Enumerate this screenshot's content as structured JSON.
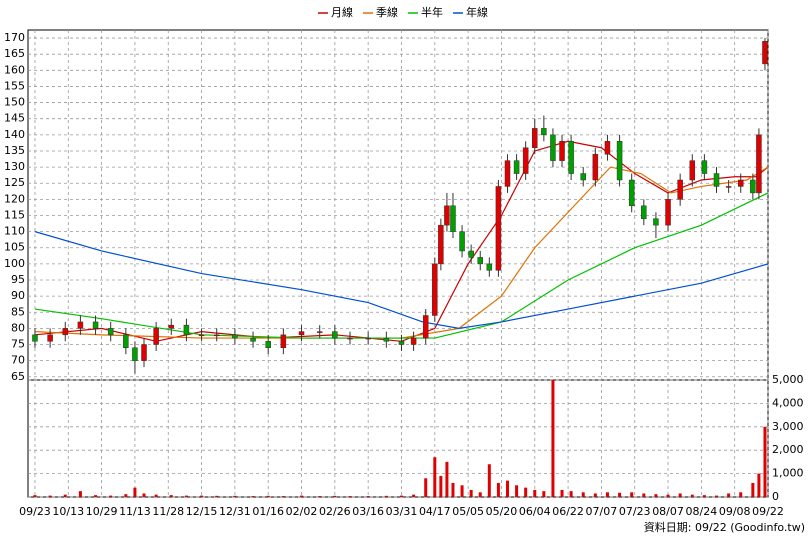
{
  "chart_data": {
    "type": "candlestick",
    "legend": "top",
    "grid": true,
    "up_color": "#e00000",
    "down_color": "#00a000",
    "xlim": [
      -2.3,
      242
    ],
    "xticks": [
      {
        "value": 0,
        "label": "09/23"
      },
      {
        "value": 11,
        "label": "10/13"
      },
      {
        "value": 22,
        "label": "10/29"
      },
      {
        "value": 33,
        "label": "11/13"
      },
      {
        "value": 44,
        "label": "11/28"
      },
      {
        "value": 55,
        "label": "12/15"
      },
      {
        "value": 66,
        "label": "12/31"
      },
      {
        "value": 77,
        "label": "01/16"
      },
      {
        "value": 88,
        "label": "02/02"
      },
      {
        "value": 99,
        "label": "02/26"
      },
      {
        "value": 110,
        "label": "03/16"
      },
      {
        "value": 121,
        "label": "03/31"
      },
      {
        "value": 132,
        "label": "04/17"
      },
      {
        "value": 143,
        "label": "05/05"
      },
      {
        "value": 154,
        "label": "05/20"
      },
      {
        "value": 165,
        "label": "06/04"
      },
      {
        "value": 176,
        "label": "06/22"
      },
      {
        "value": 187,
        "label": "07/07"
      },
      {
        "value": 198,
        "label": "07/23"
      },
      {
        "value": 209,
        "label": "08/07"
      },
      {
        "value": 220,
        "label": "08/24"
      },
      {
        "value": 231,
        "label": "09/08"
      },
      {
        "value": 242,
        "label": "09/22"
      }
    ],
    "ylim": [
      64,
      172.5
    ],
    "yticks": [
      65,
      70,
      75,
      80,
      85,
      90,
      95,
      100,
      105,
      110,
      115,
      120,
      125,
      130,
      135,
      140,
      145,
      150,
      155,
      160,
      165,
      170
    ],
    "y2lim": [
      0,
      5000
    ],
    "y2ticks": [
      0,
      {
        "value": 1000,
        "label": "1,000"
      },
      {
        "value": 2000,
        "label": "2,000"
      },
      {
        "value": 3000,
        "label": "3,000"
      },
      {
        "value": 4000,
        "label": "4,000"
      },
      {
        "value": 5000,
        "label": "5,000"
      }
    ],
    "x": [
      0,
      5,
      10,
      15,
      20,
      25,
      30,
      33,
      36,
      40,
      45,
      50,
      55,
      60,
      66,
      72,
      77,
      82,
      88,
      94,
      99,
      104,
      110,
      116,
      121,
      125,
      129,
      132,
      134,
      136,
      138,
      141,
      144,
      147,
      150,
      153,
      156,
      159,
      162,
      165,
      168,
      171,
      174,
      177,
      181,
      185,
      189,
      193,
      197,
      201,
      205,
      209,
      213,
      217,
      221,
      225,
      229,
      233,
      237,
      239,
      241
    ],
    "open": [
      78,
      76,
      78,
      80,
      82,
      80,
      78,
      74,
      70,
      75,
      80,
      81,
      78,
      78,
      78,
      77,
      76,
      74,
      78,
      79,
      79,
      77,
      77,
      77,
      76,
      75,
      77,
      84,
      100,
      112,
      118,
      110,
      104,
      102,
      100,
      98,
      124,
      132,
      128,
      136,
      142,
      140,
      132,
      138,
      128,
      126,
      134,
      138,
      126,
      118,
      114,
      112,
      120,
      126,
      132,
      128,
      124,
      124,
      126,
      122,
      162
    ],
    "high": [
      80,
      80,
      82,
      84,
      84,
      82,
      80,
      76,
      77,
      82,
      83,
      83,
      80,
      80,
      80,
      79,
      78,
      80,
      81,
      81,
      81,
      79,
      79,
      79,
      78,
      79,
      86,
      102,
      114,
      122,
      122,
      112,
      106,
      104,
      102,
      126,
      134,
      134,
      138,
      145,
      146,
      142,
      140,
      140,
      130,
      136,
      140,
      140,
      128,
      120,
      116,
      122,
      128,
      134,
      134,
      130,
      126,
      128,
      128,
      142,
      170
    ],
    "low": [
      74,
      74,
      76,
      78,
      78,
      76,
      72,
      66,
      68,
      73,
      78,
      76,
      76,
      76,
      75,
      74,
      72,
      72,
      76,
      77,
      75,
      75,
      75,
      74,
      73,
      73,
      75,
      82,
      98,
      110,
      108,
      102,
      100,
      98,
      96,
      96,
      122,
      126,
      126,
      134,
      138,
      130,
      130,
      126,
      124,
      124,
      132,
      124,
      116,
      112,
      108,
      110,
      118,
      124,
      126,
      122,
      122,
      122,
      120,
      120,
      160
    ],
    "close": [
      76,
      78,
      80,
      82,
      80,
      78,
      74,
      70,
      75,
      80,
      81,
      78,
      78,
      78,
      77,
      76,
      74,
      78,
      79,
      79,
      77,
      77,
      77,
      76,
      75,
      77,
      84,
      100,
      112,
      118,
      110,
      104,
      102,
      100,
      98,
      124,
      132,
      128,
      136,
      142,
      140,
      132,
      138,
      128,
      126,
      134,
      138,
      126,
      118,
      114,
      112,
      120,
      126,
      132,
      128,
      124,
      124,
      126,
      122,
      140,
      169
    ],
    "volume": {
      "color": "#e00000",
      "values": [
        80,
        60,
        100,
        250,
        80,
        60,
        120,
        400,
        150,
        100,
        80,
        60,
        60,
        50,
        50,
        40,
        50,
        40,
        60,
        40,
        50,
        40,
        40,
        50,
        60,
        100,
        800,
        1700,
        900,
        1500,
        600,
        500,
        300,
        200,
        1400,
        600,
        700,
        500,
        400,
        300,
        250,
        5000,
        300,
        250,
        200,
        150,
        200,
        180,
        200,
        150,
        120,
        100,
        150,
        100,
        80,
        60,
        150,
        200,
        600,
        1000,
        3000
      ]
    },
    "series": [
      {
        "name": "月線",
        "color": "#cc0000",
        "x": [
          0,
          22,
          40,
          55,
          77,
          99,
          121,
          132,
          143,
          154,
          165,
          176,
          187,
          198,
          209,
          220,
          231,
          238,
          242
        ],
        "values": [
          78,
          80,
          76,
          79,
          77,
          78,
          76,
          80,
          100,
          115,
          135,
          138,
          136,
          128,
          122,
          126,
          127,
          127,
          130
        ]
      },
      {
        "name": "季線",
        "color": "#e07000",
        "x": [
          0,
          22,
          55,
          88,
          121,
          140,
          154,
          165,
          180,
          190,
          200,
          210,
          220,
          235,
          242
        ],
        "values": [
          79,
          78,
          77,
          77,
          77,
          80,
          90,
          105,
          120,
          130,
          128,
          122,
          124,
          126,
          130
        ]
      },
      {
        "name": "半年",
        "color": "#00c000",
        "x": [
          0,
          22,
          55,
          88,
          132,
          154,
          176,
          198,
          220,
          242
        ],
        "values": [
          86,
          83,
          78,
          77,
          77,
          82,
          95,
          105,
          112,
          122
        ]
      },
      {
        "name": "年線",
        "color": "#0050d0",
        "x": [
          0,
          22,
          55,
          88,
          110,
          128,
          140,
          154,
          176,
          198,
          220,
          242
        ],
        "values": [
          110,
          104,
          97,
          92,
          88,
          82,
          80,
          82,
          86,
          90,
          94,
          100
        ]
      }
    ],
    "footnote": "資料日期: 09/22 (Goodinfo.tw)"
  }
}
